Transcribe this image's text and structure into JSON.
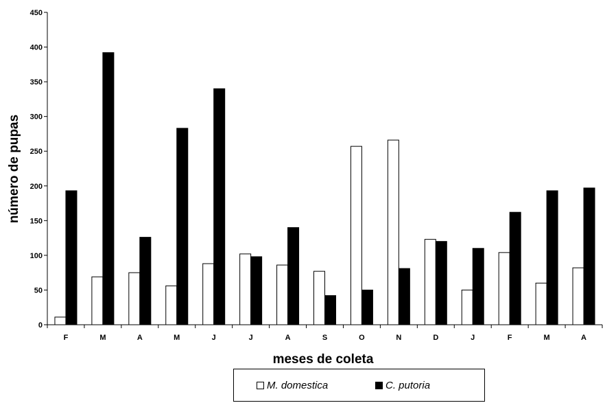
{
  "chart_data": {
    "type": "bar",
    "categories": [
      "F",
      "M",
      "A",
      "M",
      "J",
      "J",
      "A",
      "S",
      "O",
      "N",
      "D",
      "J",
      "F",
      "M",
      "A"
    ],
    "series": [
      {
        "name": "M. domestica",
        "color": "#ffffff",
        "values": [
          11,
          69,
          75,
          56,
          88,
          102,
          86,
          77,
          257,
          266,
          123,
          50,
          104,
          60,
          82
        ]
      },
      {
        "name": "C. putoria",
        "color": "#000000",
        "values": [
          193,
          392,
          126,
          283,
          340,
          98,
          140,
          42,
          50,
          81,
          120,
          110,
          162,
          193,
          197
        ]
      }
    ],
    "xlabel": "meses de coleta",
    "ylabel": "número de pupas",
    "ylim": [
      0,
      450
    ],
    "yticks": [
      0,
      50,
      100,
      150,
      200,
      250,
      300,
      350,
      400,
      450
    ],
    "grid": false,
    "legend_position": "bottom"
  }
}
